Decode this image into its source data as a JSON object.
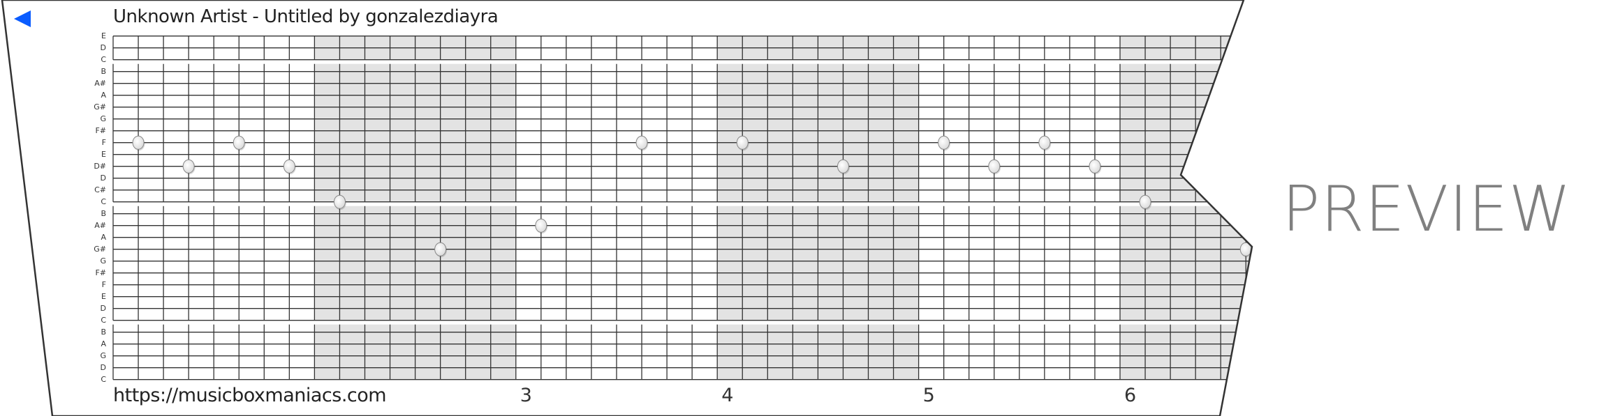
{
  "header": {
    "title": "Unknown Artist - Untitled by gonzalezdiayra",
    "back_icon": "blue-left-triangle",
    "back_color": "#0a5cff"
  },
  "footer": {
    "url": "https://musicboxmaniacs.com"
  },
  "watermark": "PREVIEW",
  "sheet": {
    "row_labels": [
      "E",
      "D",
      "C",
      "B",
      "A#",
      "A",
      "G#",
      "G",
      "F#",
      "F",
      "E",
      "D#",
      "D",
      "C#",
      "C",
      "B",
      "A#",
      "A",
      "G#",
      "G",
      "F#",
      "F",
      "E",
      "D",
      "C",
      "B",
      "A",
      "G",
      "D",
      "C"
    ],
    "steps_per_measure": 8,
    "shaded_measures": [
      2,
      4,
      6
    ],
    "shade_color": "#e3e3e3",
    "line_color": "#333333",
    "measure_numbers": [
      {
        "measure": 3,
        "label": "3"
      },
      {
        "measure": 4,
        "label": "4"
      },
      {
        "measure": 5,
        "label": "5"
      },
      {
        "measure": 6,
        "label": "6"
      }
    ],
    "notes": [
      {
        "step": 1,
        "pitch_row": 9,
        "pitch": "F"
      },
      {
        "step": 3,
        "pitch_row": 11,
        "pitch": "D#"
      },
      {
        "step": 5,
        "pitch_row": 9,
        "pitch": "F"
      },
      {
        "step": 7,
        "pitch_row": 11,
        "pitch": "D#"
      },
      {
        "step": 9,
        "pitch_row": 14,
        "pitch": "C"
      },
      {
        "step": 13,
        "pitch_row": 18,
        "pitch": "G#"
      },
      {
        "step": 17,
        "pitch_row": 16,
        "pitch": "A#"
      },
      {
        "step": 21,
        "pitch_row": 9,
        "pitch": "F"
      },
      {
        "step": 25,
        "pitch_row": 9,
        "pitch": "F"
      },
      {
        "step": 29,
        "pitch_row": 11,
        "pitch": "D#"
      },
      {
        "step": 33,
        "pitch_row": 9,
        "pitch": "F"
      },
      {
        "step": 35,
        "pitch_row": 11,
        "pitch": "D#"
      },
      {
        "step": 37,
        "pitch_row": 9,
        "pitch": "F"
      },
      {
        "step": 39,
        "pitch_row": 11,
        "pitch": "D#"
      },
      {
        "step": 41,
        "pitch_row": 14,
        "pitch": "C"
      },
      {
        "step": 45,
        "pitch_row": 18,
        "pitch": "G#"
      }
    ]
  }
}
